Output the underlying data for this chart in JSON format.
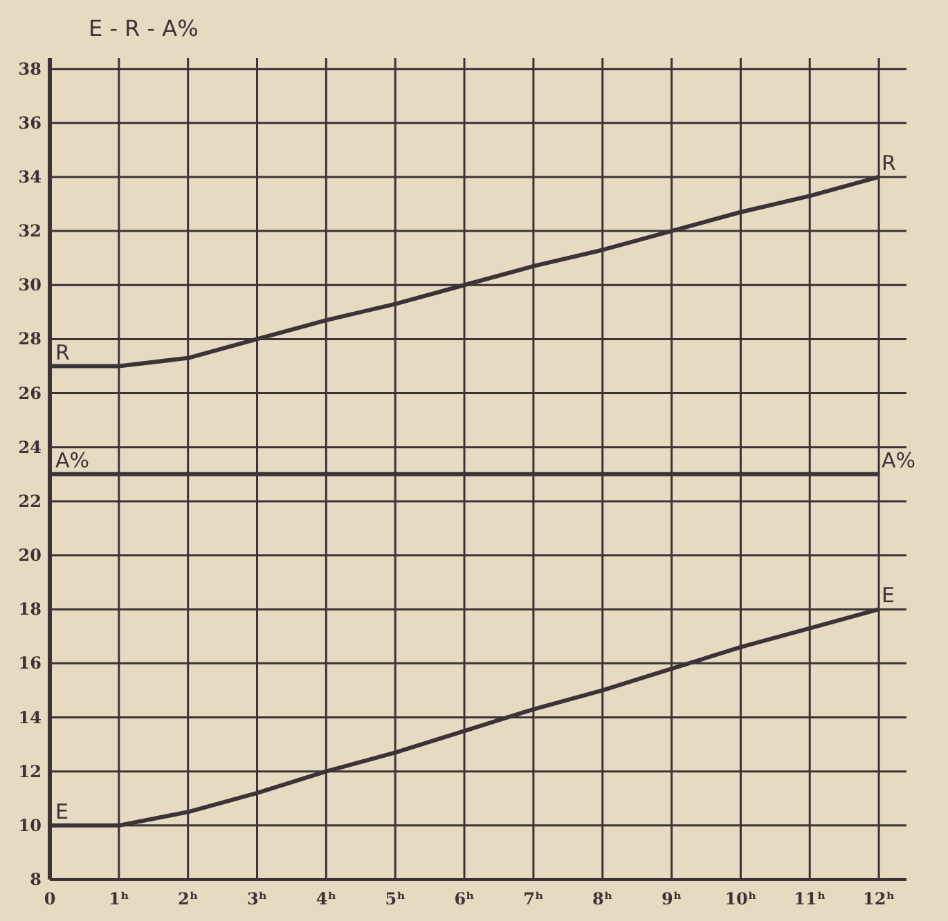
{
  "chart_data": {
    "type": "line",
    "ylabel": "E - R - A%",
    "x": [
      0,
      1,
      2,
      3,
      4,
      5,
      6,
      7,
      8,
      9,
      10,
      11,
      12
    ],
    "series": [
      {
        "name": "R",
        "color": "#3b3338",
        "values": [
          27,
          27,
          27.3,
          28,
          28.7,
          29.3,
          30,
          30.7,
          31.3,
          32,
          32.7,
          33.3,
          34
        ]
      },
      {
        "name": "A%",
        "color": "#3b3338",
        "values": [
          23,
          23,
          23,
          23,
          23,
          23,
          23,
          23,
          23,
          23,
          23,
          23,
          23
        ]
      },
      {
        "name": "E",
        "color": "#3b3338",
        "values": [
          10,
          10,
          10.5,
          11.2,
          12,
          12.7,
          13.5,
          14.3,
          15,
          15.8,
          16.6,
          17.3,
          18
        ]
      }
    ],
    "xlim": [
      0,
      12.4
    ],
    "xticks": [
      0,
      {
        "value": 1,
        "label": "1ʰ"
      },
      {
        "value": 2,
        "label": "2ʰ"
      },
      {
        "value": 3,
        "label": "3ʰ"
      },
      {
        "value": 4,
        "label": "4ʰ"
      },
      {
        "value": 5,
        "label": "5ʰ"
      },
      {
        "value": 6,
        "label": "6ʰ"
      },
      {
        "value": 7,
        "label": "7ʰ"
      },
      {
        "value": 8,
        "label": "8ʰ"
      },
      {
        "value": 9,
        "label": "9ʰ"
      },
      {
        "value": 10,
        "label": "10ʰ"
      },
      {
        "value": 11,
        "label": "11ʰ"
      },
      {
        "value": 12,
        "label": "12ʰ"
      }
    ],
    "ylim": [
      8,
      38.4
    ],
    "yticks": [
      8,
      10,
      12,
      14,
      16,
      18,
      20,
      22,
      24,
      26,
      28,
      30,
      32,
      34,
      36,
      38
    ],
    "grid": true,
    "marker": "none",
    "line_style": "solid"
  }
}
